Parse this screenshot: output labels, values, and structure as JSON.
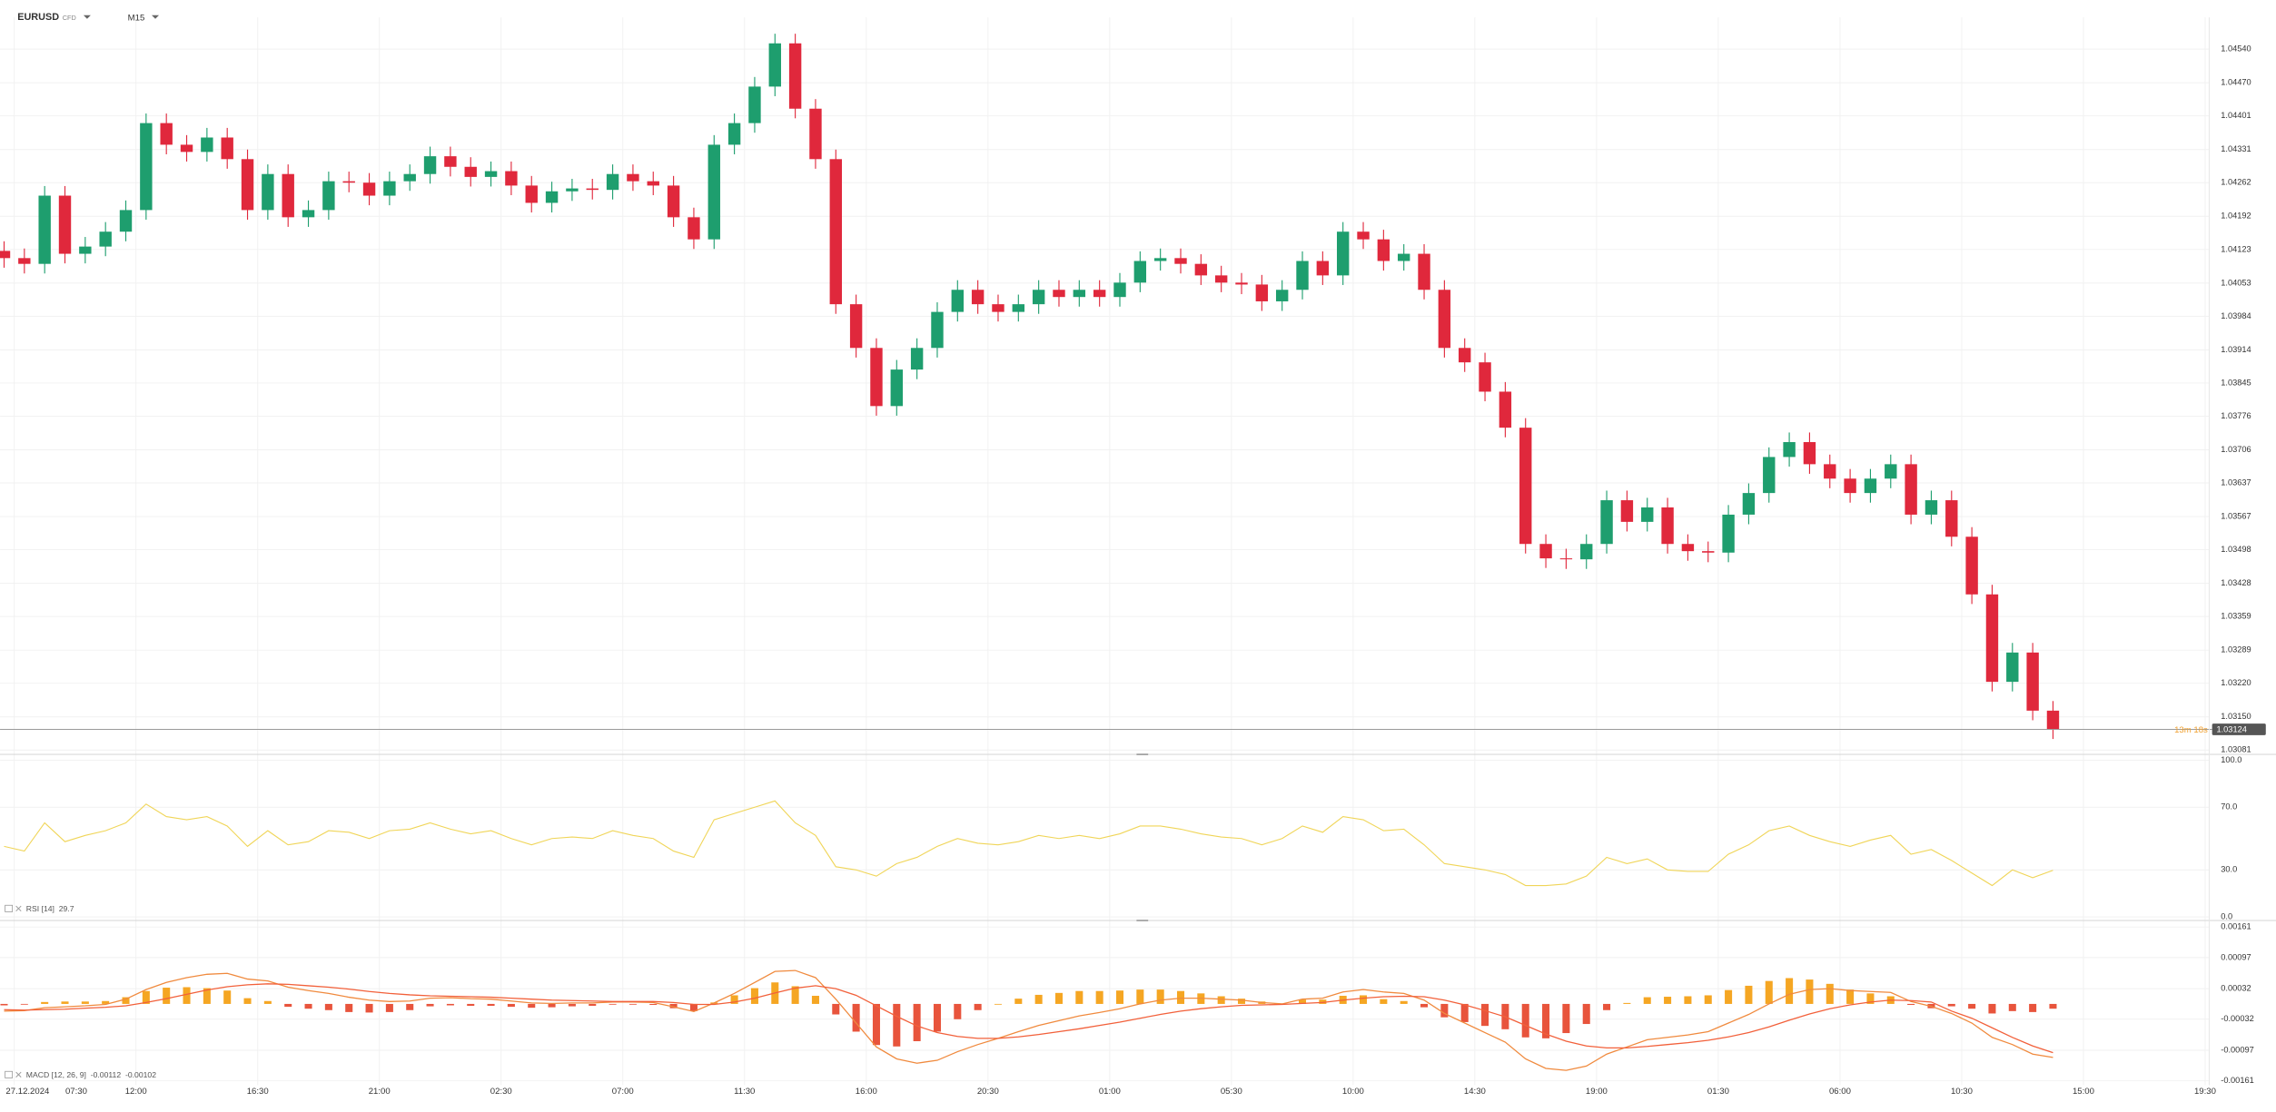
{
  "header": {
    "symbol": "EURUSD",
    "instrument_type": "CFD",
    "timeframe": "M15"
  },
  "chart_data": [
    {
      "type": "candlestick",
      "date_label": "27.12.2024",
      "countdown": "13m 18s",
      "up_color": "#1e9e6e",
      "down_color": "#e0283c",
      "grid": true,
      "xlim": [
        -0.2,
        108.7
      ],
      "xticks": [
        {
          "value": 0.5,
          "label": "07:30"
        },
        {
          "value": 6.5,
          "label": "12:00"
        },
        {
          "value": 12.5,
          "label": "16:30"
        },
        {
          "value": 18.5,
          "label": "21:00"
        },
        {
          "value": 24.5,
          "label": "02:30"
        },
        {
          "value": 30.5,
          "label": "07:00"
        },
        {
          "value": 36.5,
          "label": "11:30"
        },
        {
          "value": 42.5,
          "label": "16:00"
        },
        {
          "value": 48.5,
          "label": "20:30"
        },
        {
          "value": 54.5,
          "label": "01:00"
        },
        {
          "value": 60.5,
          "label": "05:30"
        },
        {
          "value": 66.5,
          "label": "10:00"
        },
        {
          "value": 72.5,
          "label": "14:30"
        },
        {
          "value": 78.5,
          "label": "19:00"
        },
        {
          "value": 84.5,
          "label": "01:30"
        },
        {
          "value": 90.5,
          "label": "06:00"
        },
        {
          "value": 96.5,
          "label": "10:30"
        },
        {
          "value": 102.5,
          "label": "15:00"
        },
        {
          "value": 108.5,
          "label": "19:30"
        }
      ],
      "ylim": [
        1.03078,
        1.04606
      ],
      "yticks": [
        {
          "value": 1.0454,
          "label": "1.04540"
        },
        {
          "value": 1.0447,
          "label": "1.04470"
        },
        1.04401,
        1.04331,
        1.04262,
        1.04192,
        1.04123,
        1.04053,
        1.03984,
        1.03914,
        1.03845,
        1.03776,
        1.03706,
        1.03637,
        1.03567,
        1.03498,
        1.03428,
        1.03359,
        1.03289,
        {
          "value": 1.0322,
          "label": "1.03220"
        },
        {
          "value": 1.0315,
          "label": "1.03150"
        },
        1.03081
      ],
      "open": [
        1.0412,
        1.04105,
        1.04093,
        1.04235,
        1.04114,
        1.04129,
        1.0416,
        1.04205,
        1.04386,
        1.04341,
        1.04326,
        1.04356,
        1.04311,
        1.04205,
        1.0428,
        1.0419,
        1.04205,
        1.04265,
        1.04262,
        1.04235,
        1.04265,
        1.0428,
        1.04317,
        1.04295,
        1.04274,
        1.04286,
        1.04256,
        1.0422,
        1.04244,
        1.0425,
        1.04247,
        1.0428,
        1.04265,
        1.04256,
        1.0419,
        1.04144,
        1.04341,
        1.04386,
        1.04462,
        1.04552,
        1.04416,
        1.04311,
        1.04009,
        1.03918,
        1.03797,
        1.03873,
        1.03918,
        1.03993,
        1.04039,
        1.04009,
        1.03993,
        1.04009,
        1.04039,
        1.04024,
        1.04039,
        1.04024,
        1.04054,
        1.04099,
        1.04105,
        1.04093,
        1.04069,
        1.04054,
        1.0405,
        1.04015,
        1.04039,
        1.04099,
        1.04069,
        1.0416,
        1.04144,
        1.04099,
        1.04114,
        1.04039,
        1.03918,
        1.03888,
        1.03827,
        1.03752,
        1.0351,
        1.0348,
        1.03478,
        1.0351,
        1.03601,
        1.03556,
        1.03586,
        1.0351,
        1.03495,
        1.03492,
        1.03571,
        1.03616,
        1.03691,
        1.03722,
        1.03676,
        1.03646,
        1.03616,
        1.03646,
        1.03676,
        1.03571,
        1.03601,
        1.03525,
        1.03405,
        1.03223,
        1.03284,
        1.03163
      ],
      "high": [
        1.0414,
        1.04125,
        1.04255,
        1.04255,
        1.04149,
        1.0418,
        1.04225,
        1.04406,
        1.04406,
        1.04361,
        1.04376,
        1.04376,
        1.04331,
        1.043,
        1.043,
        1.04225,
        1.04285,
        1.04285,
        1.04282,
        1.04285,
        1.043,
        1.04337,
        1.04337,
        1.04315,
        1.04306,
        1.04306,
        1.04276,
        1.04264,
        1.0427,
        1.0427,
        1.043,
        1.043,
        1.04285,
        1.04276,
        1.0421,
        1.04361,
        1.04406,
        1.04482,
        1.04572,
        1.04572,
        1.04436,
        1.04331,
        1.04029,
        1.03938,
        1.03893,
        1.03938,
        1.04013,
        1.04059,
        1.04059,
        1.04029,
        1.04029,
        1.04059,
        1.04059,
        1.04059,
        1.04059,
        1.04074,
        1.04119,
        1.04125,
        1.04125,
        1.04113,
        1.04089,
        1.04074,
        1.0407,
        1.04059,
        1.04119,
        1.04119,
        1.0418,
        1.0418,
        1.04164,
        1.04134,
        1.04134,
        1.04059,
        1.03938,
        1.03908,
        1.03847,
        1.03772,
        1.0353,
        1.035,
        1.0353,
        1.03621,
        1.03621,
        1.03606,
        1.03606,
        1.0353,
        1.03515,
        1.03591,
        1.03636,
        1.03711,
        1.03742,
        1.03742,
        1.03696,
        1.03666,
        1.03666,
        1.03696,
        1.03696,
        1.03621,
        1.03621,
        1.03545,
        1.03425,
        1.03304,
        1.03304,
        1.03183
      ],
      "low": [
        1.04085,
        1.04073,
        1.04073,
        1.04094,
        1.04094,
        1.04109,
        1.0414,
        1.04185,
        1.04321,
        1.04306,
        1.04306,
        1.04291,
        1.04185,
        1.04185,
        1.0417,
        1.0417,
        1.04185,
        1.04242,
        1.04215,
        1.04215,
        1.04245,
        1.0426,
        1.04275,
        1.04254,
        1.04254,
        1.04236,
        1.042,
        1.042,
        1.04224,
        1.04227,
        1.04227,
        1.04245,
        1.04236,
        1.0417,
        1.04124,
        1.04124,
        1.04321,
        1.04366,
        1.04442,
        1.04396,
        1.04291,
        1.03989,
        1.03898,
        1.03777,
        1.03777,
        1.03853,
        1.03898,
        1.03973,
        1.03989,
        1.03973,
        1.03973,
        1.03989,
        1.04004,
        1.04004,
        1.04004,
        1.04004,
        1.04034,
        1.04079,
        1.04073,
        1.04049,
        1.04034,
        1.0403,
        1.03995,
        1.03995,
        1.04019,
        1.04049,
        1.04049,
        1.04124,
        1.04079,
        1.04079,
        1.04019,
        1.03898,
        1.03868,
        1.03807,
        1.03732,
        1.0349,
        1.0346,
        1.03458,
        1.03458,
        1.0349,
        1.03536,
        1.03536,
        1.0349,
        1.03475,
        1.03472,
        1.03472,
        1.03551,
        1.03596,
        1.03671,
        1.03656,
        1.03626,
        1.03596,
        1.03596,
        1.03626,
        1.03551,
        1.03551,
        1.03505,
        1.03385,
        1.03203,
        1.03203,
        1.03143,
        1.03104
      ],
      "close": [
        1.04105,
        1.04093,
        1.04235,
        1.04114,
        1.04129,
        1.0416,
        1.04205,
        1.04386,
        1.04341,
        1.04326,
        1.04356,
        1.04311,
        1.04205,
        1.0428,
        1.0419,
        1.04205,
        1.04265,
        1.04262,
        1.04235,
        1.04265,
        1.0428,
        1.04317,
        1.04295,
        1.04274,
        1.04286,
        1.04256,
        1.0422,
        1.04244,
        1.0425,
        1.04247,
        1.0428,
        1.04265,
        1.04256,
        1.0419,
        1.04144,
        1.04341,
        1.04386,
        1.04462,
        1.04552,
        1.04416,
        1.04311,
        1.04009,
        1.03918,
        1.03797,
        1.03873,
        1.03918,
        1.03993,
        1.04039,
        1.04009,
        1.03993,
        1.04009,
        1.04039,
        1.04024,
        1.04039,
        1.04024,
        1.04054,
        1.04099,
        1.04105,
        1.04093,
        1.04069,
        1.04054,
        1.0405,
        1.04015,
        1.04039,
        1.04099,
        1.04069,
        1.0416,
        1.04144,
        1.04099,
        1.04114,
        1.04039,
        1.03918,
        1.03888,
        1.03827,
        1.03752,
        1.0351,
        1.0348,
        1.03478,
        1.0351,
        1.03601,
        1.03556,
        1.03586,
        1.0351,
        1.03495,
        1.03492,
        1.03571,
        1.03616,
        1.03691,
        1.03722,
        1.03676,
        1.03646,
        1.03616,
        1.03646,
        1.03676,
        1.03571,
        1.03601,
        1.03525,
        1.03405,
        1.03223,
        1.03284,
        1.03163,
        1.03124
      ]
    },
    {
      "type": "line",
      "label": "RSI [14]",
      "color": "#f0d558",
      "grid": true,
      "ylim": [
        0,
        100
      ],
      "yticks": [
        {
          "value": 100,
          "label": "100.0"
        },
        {
          "value": 70,
          "label": "70.0"
        },
        {
          "value": 30,
          "label": "30.0"
        },
        {
          "value": 0,
          "label": "0.0"
        }
      ],
      "values": [
        45,
        42,
        60,
        48,
        52,
        55,
        60,
        72,
        64,
        62,
        64,
        58,
        45,
        55,
        46,
        48,
        55,
        54,
        50,
        55,
        56,
        60,
        56,
        53,
        55,
        50,
        46,
        50,
        51,
        50,
        55,
        52,
        50,
        42,
        38,
        62,
        66,
        70,
        74,
        60,
        52,
        32,
        30,
        26,
        34,
        38,
        45,
        50,
        47,
        46,
        48,
        52,
        50,
        52,
        50,
        53,
        58,
        58,
        56,
        53,
        51,
        50,
        46,
        50,
        58,
        54,
        64,
        62,
        55,
        56,
        46,
        34,
        32,
        30,
        27,
        20,
        20,
        21,
        26,
        38,
        34,
        37,
        30,
        29,
        29,
        40,
        46,
        55,
        58,
        52,
        48,
        45,
        49,
        52,
        40,
        43,
        36,
        28,
        20,
        30,
        25,
        29.7
      ]
    },
    {
      "type": "macd",
      "label": "MACD [12, 26, 9]",
      "macd_color": "#f08a3e",
      "signal_color": "#f2603a",
      "positive_color": "#f5a623",
      "negative_color": "#e8543c",
      "grid": true,
      "ylim": [
        -0.0017,
        0.0017
      ],
      "yticks": [
        0.00161,
        0.00097,
        0.00032,
        -0.00032,
        -0.00097,
        -0.00161
      ],
      "macd": [
        -0.00015,
        -0.00014,
        -8e-05,
        -6e-05,
        -4e-05,
        -1e-05,
        0.0001,
        0.0003,
        0.00045,
        0.00055,
        0.00062,
        0.00064,
        0.00052,
        0.00048,
        0.00035,
        0.00028,
        0.00022,
        0.00014,
        8e-05,
        5e-05,
        6e-05,
        0.00012,
        0.00013,
        0.00011,
        0.0001,
        6e-05,
        2e-05,
        1e-05,
        2e-05,
        2e-05,
        4e-05,
        4e-05,
        3e-05,
        -6e-05,
        -0.00016,
        2e-05,
        0.00022,
        0.00045,
        0.00068,
        0.0007,
        0.00055,
        0.0001,
        -0.0004,
        -0.0009,
        -0.00115,
        -0.00124,
        -0.00118,
        -0.001,
        -0.00085,
        -0.00072,
        -0.00058,
        -0.00045,
        -0.00035,
        -0.00025,
        -0.00018,
        -0.0001,
        0.0,
        8e-05,
        0.00012,
        0.00012,
        0.0001,
        8e-05,
        3e-05,
        0.0,
        0.0001,
        0.00012,
        0.00025,
        0.0003,
        0.00025,
        0.00022,
        8e-05,
        -0.0002,
        -0.0004,
        -0.0006,
        -0.0008,
        -0.00115,
        -0.00135,
        -0.00139,
        -0.0013,
        -0.00105,
        -0.0009,
        -0.00075,
        -0.0007,
        -0.00065,
        -0.00058,
        -0.0004,
        -0.00022,
        0.0,
        0.0002,
        0.0003,
        0.00032,
        0.00028,
        0.00026,
        0.00024,
        5e-05,
        -5e-05,
        -0.0002,
        -0.0004,
        -0.0007,
        -0.00085,
        -0.00105,
        -0.00112
      ],
      "signal": [
        -0.00012,
        -0.00013,
        -0.00012,
        -0.00011,
        -9e-05,
        -7e-05,
        -4e-05,
        3e-05,
        0.00011,
        0.0002,
        0.00029,
        0.00036,
        0.0004,
        0.00042,
        0.00041,
        0.00038,
        0.00035,
        0.00031,
        0.00026,
        0.00022,
        0.00019,
        0.00017,
        0.00016,
        0.00015,
        0.00014,
        0.00012,
        0.0001,
        8e-05,
        7e-05,
        6e-05,
        5e-05,
        5e-05,
        5e-05,
        3e-05,
        -1e-05,
        -1e-05,
        4e-05,
        0.00012,
        0.00023,
        0.00033,
        0.00038,
        0.00032,
        0.00018,
        -4e-05,
        -0.00026,
        -0.00046,
        -0.0006,
        -0.00068,
        -0.00072,
        -0.00072,
        -0.00069,
        -0.00064,
        -0.00058,
        -0.00052,
        -0.00045,
        -0.00038,
        -0.0003,
        -0.00022,
        -0.00015,
        -0.0001,
        -6e-05,
        -3e-05,
        -2e-05,
        -1e-05,
        1e-05,
        3e-05,
        8e-05,
        0.00012,
        0.00015,
        0.00016,
        0.00015,
        8e-05,
        -2e-05,
        -0.00014,
        -0.00027,
        -0.00045,
        -0.00063,
        -0.00078,
        -0.00088,
        -0.00092,
        -0.00092,
        -0.00089,
        -0.00085,
        -0.00081,
        -0.00076,
        -0.00069,
        -0.0006,
        -0.00048,
        -0.00034,
        -0.00021,
        -0.0001,
        -2e-05,
        4e-05,
        8e-05,
        7e-05,
        4e-05,
        -0.00015,
        -0.0003,
        -0.0005,
        -0.0007,
        -0.00088,
        -0.00102
      ],
      "histogram": [
        -3e-05,
        -1e-05,
        4e-05,
        5e-05,
        5e-05,
        6e-05,
        0.00014,
        0.00027,
        0.00034,
        0.00035,
        0.00033,
        0.00028,
        0.00012,
        6e-05,
        -6e-05,
        -0.0001,
        -0.00013,
        -0.00017,
        -0.00018,
        -0.00017,
        -0.00013,
        -5e-05,
        -3e-05,
        -4e-05,
        -4e-05,
        -6e-05,
        -8e-05,
        -7e-05,
        -5e-05,
        -4e-05,
        -1e-05,
        -1e-05,
        -2e-05,
        -9e-05,
        -0.00015,
        3e-05,
        0.00018,
        0.00033,
        0.00045,
        0.00037,
        0.00017,
        -0.00022,
        -0.00058,
        -0.00086,
        -0.00089,
        -0.00078,
        -0.00058,
        -0.00032,
        -0.00013,
        0.0,
        0.00011,
        0.00019,
        0.00023,
        0.00027,
        0.00027,
        0.00028,
        0.0003,
        0.0003,
        0.00027,
        0.00022,
        0.00016,
        0.00011,
        5e-05,
        1e-05,
        9e-05,
        9e-05,
        0.00017,
        0.00018,
        0.0001,
        6e-05,
        -7e-05,
        -0.00028,
        -0.00038,
        -0.00046,
        -0.00053,
        -0.0007,
        -0.00072,
        -0.00061,
        -0.00042,
        -0.00013,
        2e-05,
        0.00014,
        0.00015,
        0.00016,
        0.00018,
        0.00029,
        0.00038,
        0.00048,
        0.00054,
        0.00051,
        0.00042,
        0.0003,
        0.00022,
        0.00016,
        -2e-05,
        -9e-05,
        -5e-05,
        -0.0001,
        -0.0002,
        -0.00015,
        -0.00017,
        -0.0001
      ]
    }
  ]
}
